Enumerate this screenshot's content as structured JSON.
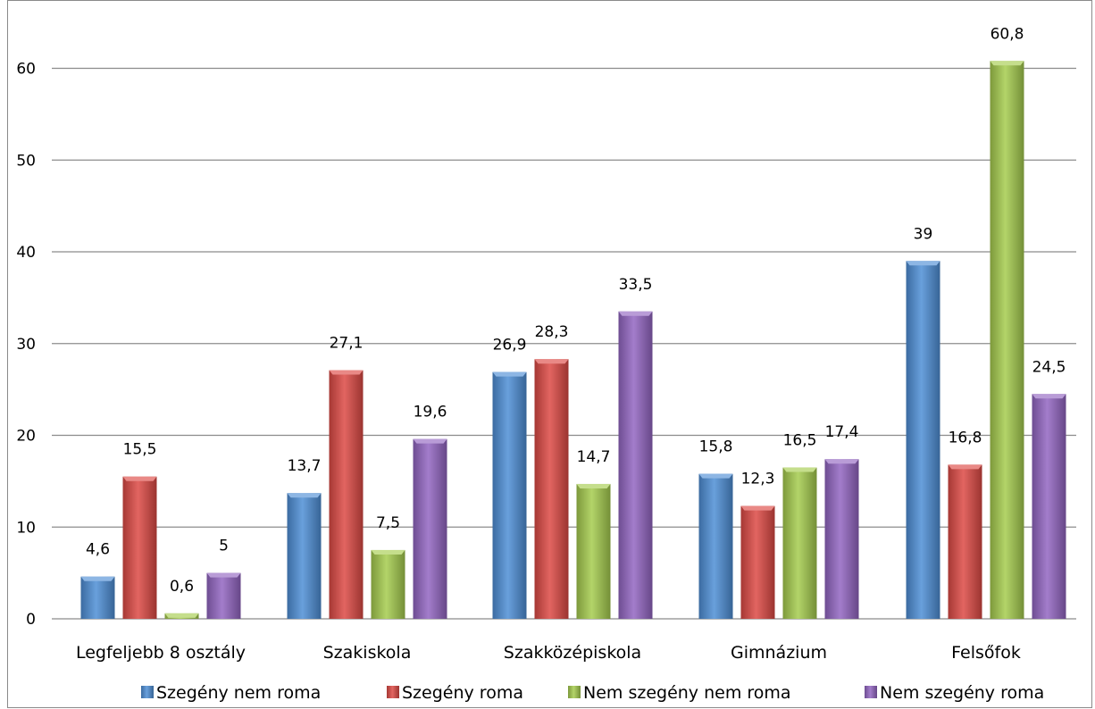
{
  "chart_data": {
    "type": "bar",
    "categories": [
      "Legfeljebb 8 osztály",
      "Szakiskola",
      "Szakközépiskola",
      "Gimnázium",
      "Felsőfok"
    ],
    "series": [
      {
        "name": "Szegény nem roma",
        "values": [
          4.6,
          13.7,
          26.9,
          15.8,
          39
        ],
        "labels": [
          "4,6",
          "13,7",
          "26,9",
          "15,8",
          "39"
        ],
        "color": "#4f8fd6"
      },
      {
        "name": "Szegény roma",
        "values": [
          15.5,
          27.1,
          28.3,
          12.3,
          16.8
        ],
        "labels": [
          "15,5",
          "27,1",
          "28,3",
          "12,3",
          "16,8"
        ],
        "color": "#dd4a45"
      },
      {
        "name": "Nem szegény nem roma",
        "values": [
          0.6,
          7.5,
          14.7,
          16.5,
          60.8
        ],
        "labels": [
          "0,6",
          "7,5",
          "14,7",
          "16,5",
          "60,8"
        ],
        "color": "#a6cc4e"
      },
      {
        "name": "Nem szegény roma",
        "values": [
          5,
          19.6,
          33.5,
          17.4,
          24.5
        ],
        "labels": [
          "5",
          "19,6",
          "33,5",
          "17,4",
          "24,5"
        ],
        "color": "#9366c2"
      }
    ],
    "yticks": [
      "0",
      "10",
      "20",
      "30",
      "40",
      "50",
      "60"
    ],
    "ylim": [
      0,
      60
    ],
    "grid": true,
    "legend_position": "bottom"
  }
}
